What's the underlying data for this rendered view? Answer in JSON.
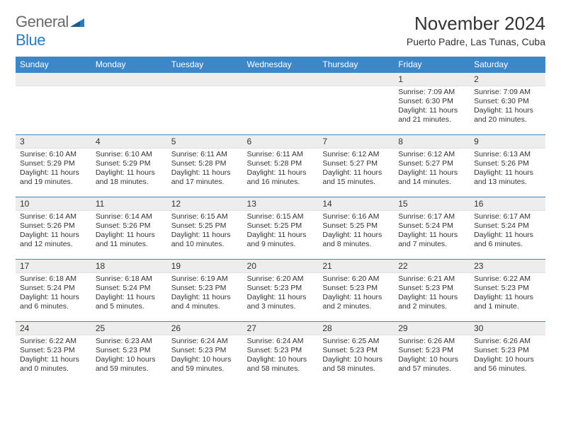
{
  "logo": {
    "word1": "General",
    "word2": "Blue"
  },
  "title": "November 2024",
  "location": "Puerto Padre, Las Tunas, Cuba",
  "colors": {
    "header_bg": "#3d87c7",
    "daynum_bg": "#ededed",
    "text": "#333333",
    "logo_gray": "#6a6a6a",
    "logo_blue": "#2b7bbf",
    "row_border": "#3d87c7"
  },
  "daysOfWeek": [
    "Sunday",
    "Monday",
    "Tuesday",
    "Wednesday",
    "Thursday",
    "Friday",
    "Saturday"
  ],
  "weeks": [
    [
      null,
      null,
      null,
      null,
      null,
      {
        "n": "1",
        "sr": "7:09 AM",
        "ss": "6:30 PM",
        "dl": "11 hours and 21 minutes."
      },
      {
        "n": "2",
        "sr": "7:09 AM",
        "ss": "6:30 PM",
        "dl": "11 hours and 20 minutes."
      }
    ],
    [
      {
        "n": "3",
        "sr": "6:10 AM",
        "ss": "5:29 PM",
        "dl": "11 hours and 19 minutes."
      },
      {
        "n": "4",
        "sr": "6:10 AM",
        "ss": "5:29 PM",
        "dl": "11 hours and 18 minutes."
      },
      {
        "n": "5",
        "sr": "6:11 AM",
        "ss": "5:28 PM",
        "dl": "11 hours and 17 minutes."
      },
      {
        "n": "6",
        "sr": "6:11 AM",
        "ss": "5:28 PM",
        "dl": "11 hours and 16 minutes."
      },
      {
        "n": "7",
        "sr": "6:12 AM",
        "ss": "5:27 PM",
        "dl": "11 hours and 15 minutes."
      },
      {
        "n": "8",
        "sr": "6:12 AM",
        "ss": "5:27 PM",
        "dl": "11 hours and 14 minutes."
      },
      {
        "n": "9",
        "sr": "6:13 AM",
        "ss": "5:26 PM",
        "dl": "11 hours and 13 minutes."
      }
    ],
    [
      {
        "n": "10",
        "sr": "6:14 AM",
        "ss": "5:26 PM",
        "dl": "11 hours and 12 minutes."
      },
      {
        "n": "11",
        "sr": "6:14 AM",
        "ss": "5:26 PM",
        "dl": "11 hours and 11 minutes."
      },
      {
        "n": "12",
        "sr": "6:15 AM",
        "ss": "5:25 PM",
        "dl": "11 hours and 10 minutes."
      },
      {
        "n": "13",
        "sr": "6:15 AM",
        "ss": "5:25 PM",
        "dl": "11 hours and 9 minutes."
      },
      {
        "n": "14",
        "sr": "6:16 AM",
        "ss": "5:25 PM",
        "dl": "11 hours and 8 minutes."
      },
      {
        "n": "15",
        "sr": "6:17 AM",
        "ss": "5:24 PM",
        "dl": "11 hours and 7 minutes."
      },
      {
        "n": "16",
        "sr": "6:17 AM",
        "ss": "5:24 PM",
        "dl": "11 hours and 6 minutes."
      }
    ],
    [
      {
        "n": "17",
        "sr": "6:18 AM",
        "ss": "5:24 PM",
        "dl": "11 hours and 6 minutes."
      },
      {
        "n": "18",
        "sr": "6:18 AM",
        "ss": "5:24 PM",
        "dl": "11 hours and 5 minutes."
      },
      {
        "n": "19",
        "sr": "6:19 AM",
        "ss": "5:23 PM",
        "dl": "11 hours and 4 minutes."
      },
      {
        "n": "20",
        "sr": "6:20 AM",
        "ss": "5:23 PM",
        "dl": "11 hours and 3 minutes."
      },
      {
        "n": "21",
        "sr": "6:20 AM",
        "ss": "5:23 PM",
        "dl": "11 hours and 2 minutes."
      },
      {
        "n": "22",
        "sr": "6:21 AM",
        "ss": "5:23 PM",
        "dl": "11 hours and 2 minutes."
      },
      {
        "n": "23",
        "sr": "6:22 AM",
        "ss": "5:23 PM",
        "dl": "11 hours and 1 minute."
      }
    ],
    [
      {
        "n": "24",
        "sr": "6:22 AM",
        "ss": "5:23 PM",
        "dl": "11 hours and 0 minutes."
      },
      {
        "n": "25",
        "sr": "6:23 AM",
        "ss": "5:23 PM",
        "dl": "10 hours and 59 minutes."
      },
      {
        "n": "26",
        "sr": "6:24 AM",
        "ss": "5:23 PM",
        "dl": "10 hours and 59 minutes."
      },
      {
        "n": "27",
        "sr": "6:24 AM",
        "ss": "5:23 PM",
        "dl": "10 hours and 58 minutes."
      },
      {
        "n": "28",
        "sr": "6:25 AM",
        "ss": "5:23 PM",
        "dl": "10 hours and 58 minutes."
      },
      {
        "n": "29",
        "sr": "6:26 AM",
        "ss": "5:23 PM",
        "dl": "10 hours and 57 minutes."
      },
      {
        "n": "30",
        "sr": "6:26 AM",
        "ss": "5:23 PM",
        "dl": "10 hours and 56 minutes."
      }
    ]
  ],
  "labels": {
    "sunrise": "Sunrise:",
    "sunset": "Sunset:",
    "daylight": "Daylight:"
  }
}
